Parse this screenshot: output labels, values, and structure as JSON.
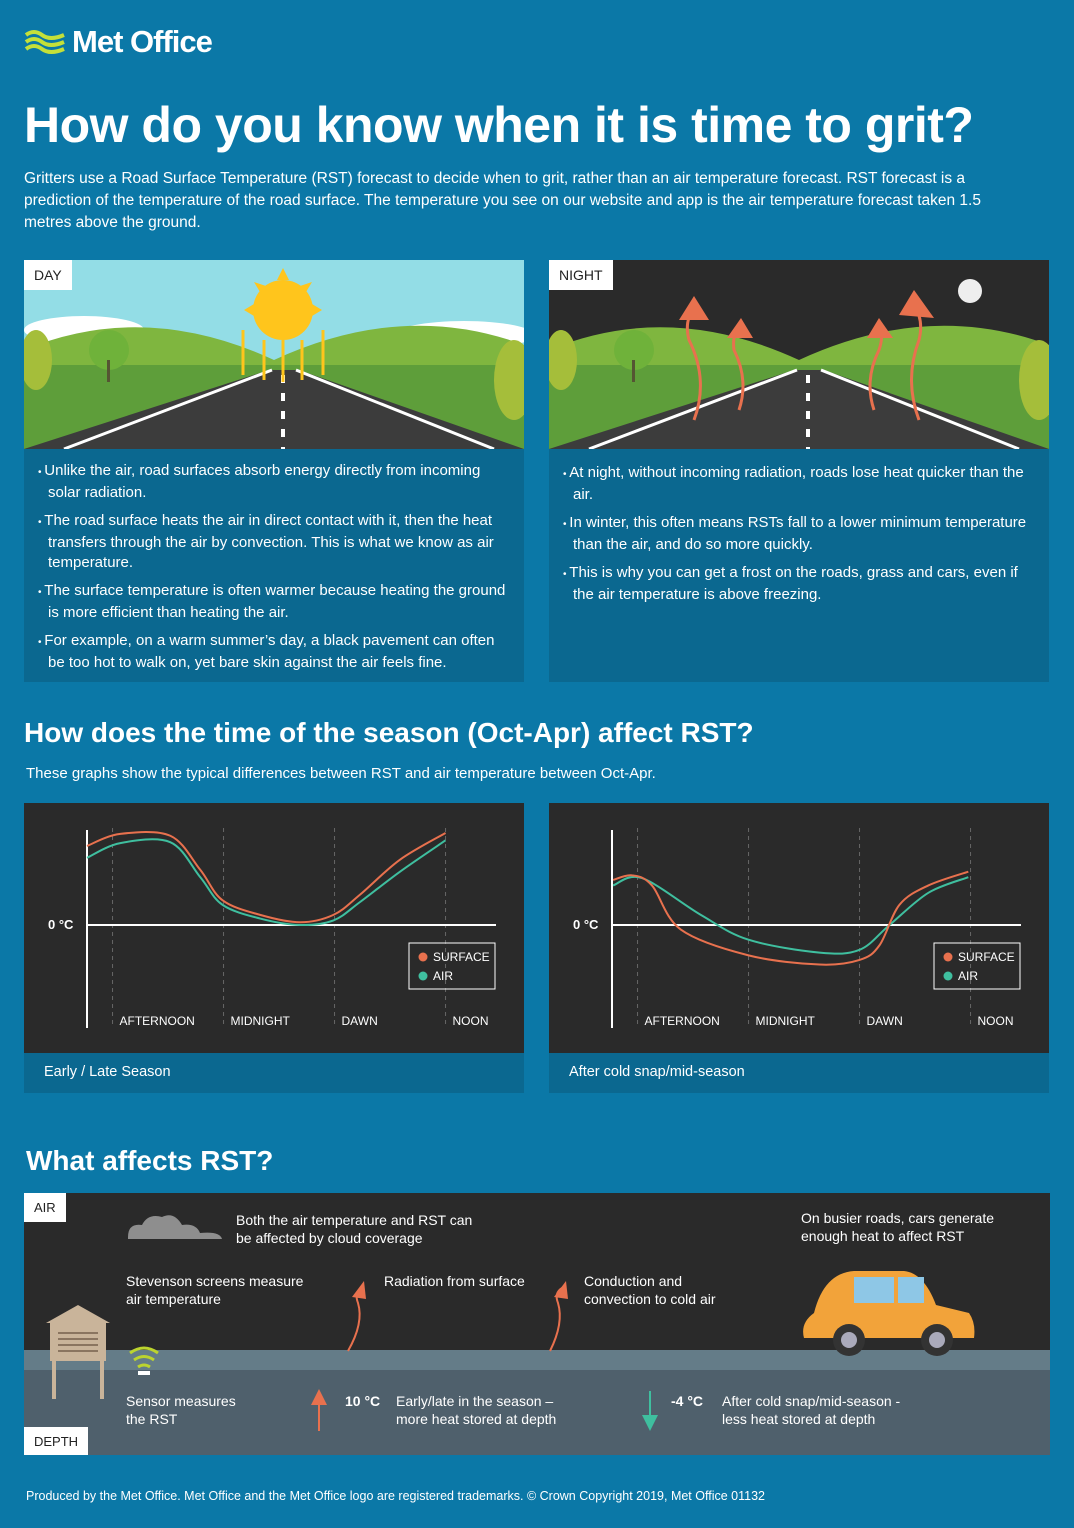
{
  "logo": {
    "text": "Met Office"
  },
  "title": "How do you know when it is time to grit?",
  "intro": "Gritters use a Road Surface Temperature (RST) forecast to decide when to grit, rather than an air temperature forecast. RST forecast is a prediction of the temperature of the road surface. The temperature you see on our website and app is the air temperature forecast taken 1.5 metres above the ground.",
  "day": {
    "tag": "DAY",
    "bullets": [
      "Unlike the air, road surfaces absorb energy directly from incoming solar radiation.",
      "The road surface heats the air in direct contact with it, then the heat transfers through the air by convection. This is what we know as air temperature.",
      "The surface temperature is often warmer because heating the ground is more efficient than heating the air.",
      "For example, on a warm summer’s day, a black pavement can often be too hot to walk on, yet bare skin against the air feels fine."
    ]
  },
  "night": {
    "tag": "NIGHT",
    "bullets": [
      "At night, without incoming radiation, roads lose heat quicker than the air.",
      "In winter, this often means RSTs fall to a lower minimum temperature than the air, and do so more quickly.",
      "This is why you can get a frost on the roads, grass and cars, even if the air temperature is above freezing."
    ]
  },
  "season": {
    "title": "How does the time of the season (Oct-Apr) affect RST?",
    "subtitle": "These graphs show the typical differences between RST and air temperature between Oct-Apr."
  },
  "colors": {
    "surface": "#e8714e",
    "air": "#3fbf9f",
    "background": "#0b78a7",
    "panel": "#0b6890"
  },
  "chart_data": [
    {
      "type": "line",
      "caption": "Early / Late Season",
      "ylabel": "0 °C",
      "x_tick_labels": [
        "AFTERNOON",
        "MIDNIGHT",
        "DAWN",
        "NOON"
      ],
      "x_ticks": [
        1,
        2,
        3,
        4
      ],
      "grid": "vertical dashed",
      "legend": {
        "placement": "bottom-right",
        "entries": [
          "SURFACE",
          "AIR"
        ]
      },
      "series": [
        {
          "name": "SURFACE",
          "x": [
            0.77,
            1.07,
            1.52,
            1.79,
            1.99,
            2.33,
            2.69,
            2.99,
            3.23,
            3.59,
            4.0
          ],
          "y": [
            0.86,
            0.99,
            0.97,
            0.6,
            0.27,
            0.11,
            0.03,
            0.11,
            0.33,
            0.71,
            1.0
          ]
        },
        {
          "name": "AIR",
          "x": [
            0.77,
            1.07,
            1.52,
            1.79,
            1.99,
            2.33,
            2.69,
            2.99,
            3.23,
            3.59,
            4.0
          ],
          "y": [
            0.73,
            0.89,
            0.9,
            0.52,
            0.22,
            0.07,
            0.0,
            0.05,
            0.25,
            0.58,
            0.92
          ]
        }
      ]
    },
    {
      "type": "line",
      "caption": "After cold snap/mid-season",
      "ylabel": "0 °C",
      "x_tick_labels": [
        "AFTERNOON",
        "MIDNIGHT",
        "DAWN",
        "NOON"
      ],
      "x_ticks": [
        1,
        2,
        3,
        4
      ],
      "grid": "vertical dashed",
      "legend": {
        "placement": "bottom-right",
        "entries": [
          "SURFACE",
          "AIR"
        ]
      },
      "series": [
        {
          "name": "SURFACE",
          "x": [
            0.78,
            0.95,
            1.13,
            1.39,
            2.0,
            2.64,
            3.0,
            3.18,
            3.36,
            3.62,
            3.98
          ],
          "y": [
            0.49,
            0.54,
            0.43,
            -0.05,
            -0.33,
            -0.43,
            -0.38,
            -0.22,
            0.22,
            0.43,
            0.58
          ]
        },
        {
          "name": "AIR",
          "x": [
            0.78,
            1.04,
            1.57,
            2.0,
            2.64,
            3.0,
            3.27,
            3.62,
            3.98
          ],
          "y": [
            0.43,
            0.51,
            0.11,
            -0.16,
            -0.3,
            -0.27,
            0.0,
            0.35,
            0.52
          ]
        }
      ]
    }
  ],
  "affects": {
    "title": "What affects RST?",
    "air_tag": "AIR",
    "depth_tag": "DEPTH",
    "cloud": "Both the air temperature and RST can be affected by cloud coverage",
    "cars": "On busier roads, cars generate enough heat to affect RST",
    "screens": "Stevenson screens measure air temperature",
    "radiation": "Radiation from surface",
    "conduction": "Conduction and convection to cold air",
    "sensor": "Sensor measures the RST",
    "warm_temp": "10 °C",
    "warm_text": "Early/late in the season – more heat stored at depth",
    "cold_temp": "-4 °C",
    "cold_text": "After cold snap/mid-season - less heat stored at depth"
  },
  "footer": "Produced by the Met Office. Met Office and the Met Office logo are registered trademarks. © Crown Copyright 2019, Met Office  01132"
}
